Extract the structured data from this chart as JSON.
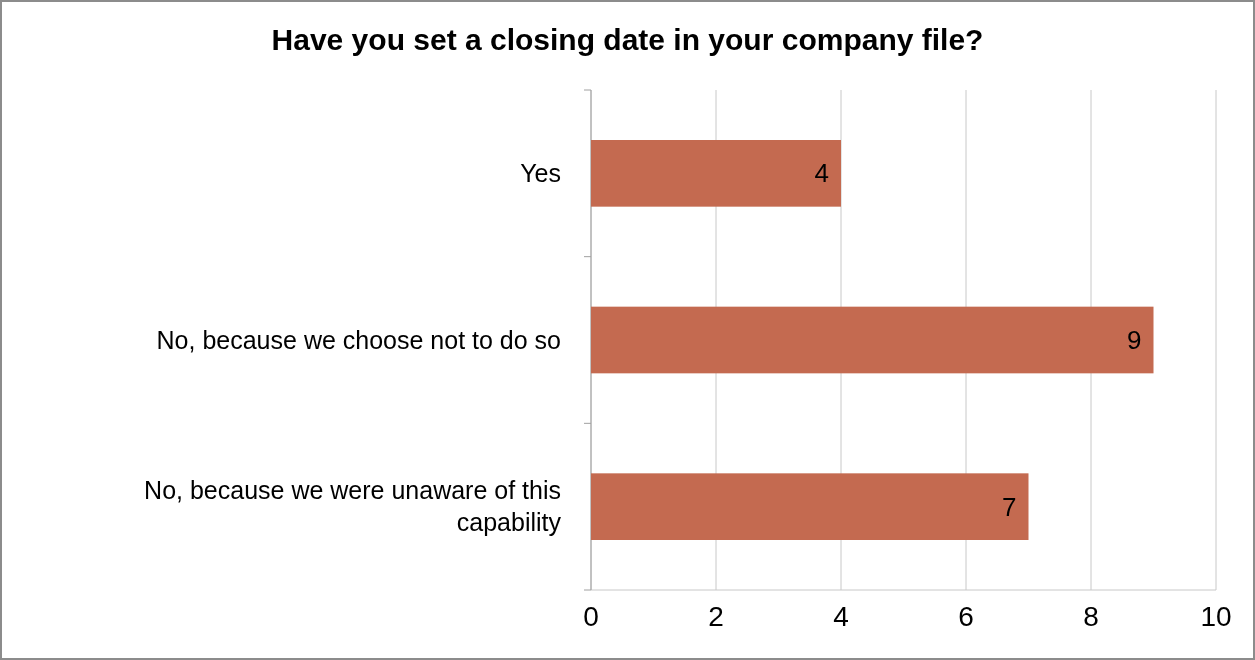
{
  "chart_data": {
    "type": "bar",
    "orientation": "horizontal",
    "title": "Have you set a closing date in your company file?",
    "categories": [
      "Yes",
      "No, because we choose not to do so",
      "No, because we were unaware of this capability"
    ],
    "values": [
      4,
      9,
      7
    ],
    "color": "#c46a50",
    "xlim": [
      0,
      10
    ],
    "xticks": [
      0,
      2,
      4,
      6,
      8,
      10
    ],
    "grid": "x",
    "data_labels": true
  }
}
